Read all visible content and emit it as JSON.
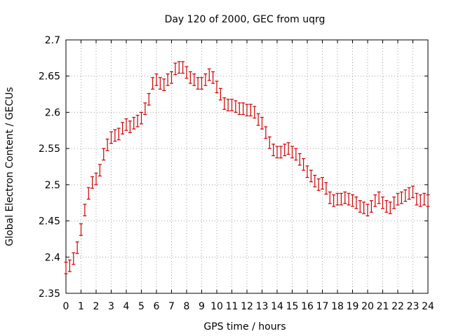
{
  "chart_data": {
    "type": "scatter",
    "title": "Day 120 of 2000, GEC from uqrg",
    "xlabel": "GPS time / hours",
    "ylabel": "Global Electron Content / GECUs",
    "xlim": [
      0,
      24
    ],
    "ylim": [
      2.35,
      2.7
    ],
    "x_ticks": [
      0,
      1,
      2,
      3,
      4,
      5,
      6,
      7,
      8,
      9,
      10,
      11,
      12,
      13,
      14,
      15,
      16,
      17,
      18,
      19,
      20,
      21,
      22,
      23,
      24
    ],
    "y_ticks": [
      2.35,
      2.4,
      2.45,
      2.5,
      2.55,
      2.6,
      2.65,
      2.7
    ],
    "grid": true,
    "series_color": "#cc0000",
    "error_half_width": 0.008,
    "x": [
      0.0,
      0.25,
      0.5,
      0.75,
      1.0,
      1.25,
      1.5,
      1.75,
      2.0,
      2.25,
      2.5,
      2.75,
      3.0,
      3.25,
      3.5,
      3.75,
      4.0,
      4.25,
      4.5,
      4.75,
      5.0,
      5.25,
      5.5,
      5.75,
      6.0,
      6.25,
      6.5,
      6.75,
      7.0,
      7.25,
      7.5,
      7.75,
      8.0,
      8.25,
      8.5,
      8.75,
      9.0,
      9.25,
      9.5,
      9.75,
      10.0,
      10.25,
      10.5,
      10.75,
      11.0,
      11.25,
      11.5,
      11.75,
      12.0,
      12.25,
      12.5,
      12.75,
      13.0,
      13.25,
      13.5,
      13.75,
      14.0,
      14.25,
      14.5,
      14.75,
      15.0,
      15.25,
      15.5,
      15.75,
      16.0,
      16.25,
      16.5,
      16.75,
      17.0,
      17.25,
      17.5,
      17.75,
      18.0,
      18.25,
      18.5,
      18.75,
      19.0,
      19.25,
      19.5,
      19.75,
      20.0,
      20.25,
      20.5,
      20.75,
      21.0,
      21.25,
      21.5,
      21.75,
      22.0,
      22.25,
      22.5,
      22.75,
      23.0,
      23.25,
      23.5,
      23.75,
      24.0
    ],
    "y": [
      2.385,
      2.388,
      2.398,
      2.413,
      2.438,
      2.465,
      2.488,
      2.503,
      2.508,
      2.52,
      2.542,
      2.555,
      2.565,
      2.568,
      2.57,
      2.578,
      2.583,
      2.58,
      2.585,
      2.588,
      2.592,
      2.605,
      2.618,
      2.64,
      2.645,
      2.64,
      2.638,
      2.645,
      2.648,
      2.66,
      2.662,
      2.662,
      2.655,
      2.648,
      2.645,
      2.64,
      2.64,
      2.645,
      2.652,
      2.648,
      2.635,
      2.625,
      2.612,
      2.61,
      2.61,
      2.608,
      2.605,
      2.605,
      2.603,
      2.603,
      2.6,
      2.59,
      2.585,
      2.572,
      2.558,
      2.548,
      2.545,
      2.545,
      2.548,
      2.55,
      2.545,
      2.542,
      2.535,
      2.528,
      2.518,
      2.512,
      2.505,
      2.5,
      2.502,
      2.495,
      2.482,
      2.478,
      2.48,
      2.48,
      2.482,
      2.48,
      2.478,
      2.475,
      2.47,
      2.468,
      2.465,
      2.47,
      2.478,
      2.482,
      2.475,
      2.47,
      2.468,
      2.475,
      2.48,
      2.482,
      2.485,
      2.488,
      2.49,
      2.48,
      2.478,
      2.48,
      2.478
    ]
  }
}
